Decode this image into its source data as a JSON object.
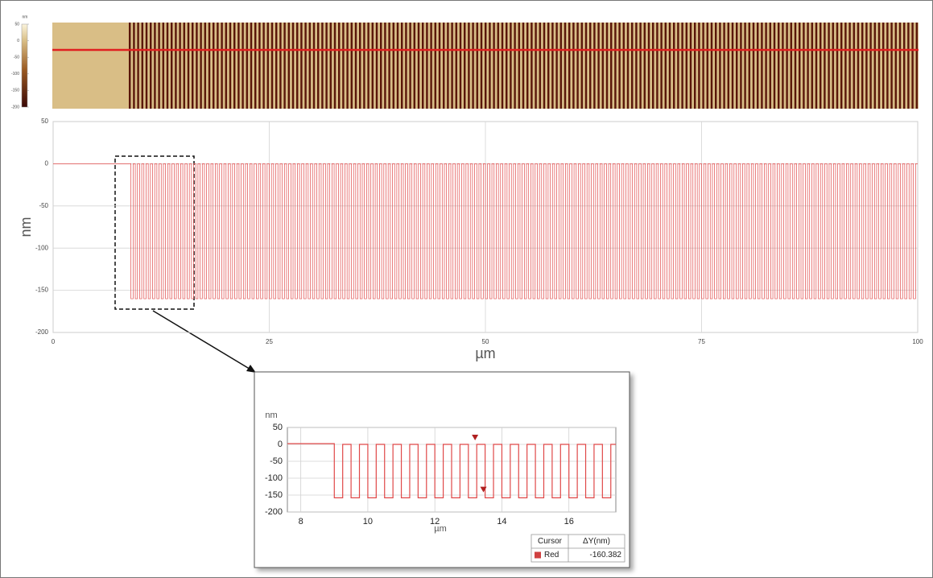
{
  "colorbar": {
    "label": "nm",
    "lim": [
      -200,
      50
    ],
    "ticks": [
      50,
      0,
      -50,
      -100,
      -150,
      -200
    ]
  },
  "chart_data": [
    {
      "type": "line",
      "xlabel": "µm",
      "ylabel": "nm",
      "xlim": [
        0,
        100
      ],
      "ylim": [
        -200,
        50
      ],
      "xticks": [
        0,
        25,
        50,
        75,
        100
      ],
      "yticks": [
        50,
        0,
        -50,
        -100,
        -150,
        -200
      ],
      "grid": true,
      "step": true,
      "series": [
        {
          "color": "#e04848",
          "x": [
            0,
            9,
            9.25,
            9.5,
            9.75,
            10,
            10.25,
            10.5,
            10.75,
            11,
            11.25,
            11.5,
            11.75,
            12,
            12.25,
            12.5,
            12.75,
            13,
            13.25,
            13.5,
            13.75,
            14,
            14.25,
            14.5,
            14.75,
            15,
            15.25,
            15.5,
            15.75,
            16,
            16.25,
            16.5,
            16.75,
            17,
            17.25,
            17.5,
            17.75,
            18,
            18.25,
            18.5,
            18.75,
            19,
            19.25,
            19.5,
            19.75,
            20,
            20.25,
            20.5,
            20.75,
            21,
            21.25,
            21.5,
            21.75,
            22,
            22.25,
            22.5,
            22.75,
            23,
            23.25,
            23.5,
            23.75,
            24,
            24.25,
            24.5,
            24.75,
            25,
            25.25,
            25.5,
            25.75,
            26,
            26.25,
            26.5,
            26.75,
            27,
            27.25,
            27.5,
            27.75,
            28,
            28.25,
            28.5,
            28.75,
            29,
            29.25,
            29.5,
            29.75,
            30,
            30.25,
            30.5,
            30.75,
            31,
            31.25,
            31.5,
            31.75,
            32,
            32.25,
            32.5,
            32.75,
            33,
            33.25,
            33.5,
            33.75,
            34,
            34.25,
            34.5,
            34.75,
            35,
            35.25,
            35.5,
            35.75,
            36,
            36.25,
            36.5,
            36.75,
            37,
            37.25,
            37.5,
            37.75,
            38,
            38.25,
            38.5,
            38.75,
            39,
            39.25,
            39.5,
            39.75,
            40,
            40.25,
            40.5,
            40.75,
            41,
            41.25,
            41.5,
            41.75,
            42,
            42.25,
            42.5,
            42.75,
            43,
            43.25,
            43.5,
            43.75,
            44,
            44.25,
            44.5,
            44.75,
            45,
            45.25,
            45.5,
            45.75,
            46,
            46.25,
            46.5,
            46.75,
            47,
            47.25,
            47.5,
            47.75,
            48,
            48.25,
            48.5,
            48.75,
            49,
            49.25,
            49.5,
            49.75,
            50,
            50.25,
            50.5,
            50.75,
            51,
            51.25,
            51.5,
            51.75,
            52,
            52.25,
            52.5,
            52.75,
            53,
            53.25,
            53.5,
            53.75,
            54,
            54.25,
            54.5,
            54.75,
            55,
            55.25,
            55.5,
            55.75,
            56,
            56.25,
            56.5,
            56.75,
            57,
            57.25,
            57.5,
            57.75,
            58,
            58.25,
            58.5,
            58.75,
            59,
            59.25,
            59.5,
            59.75,
            60,
            60.25,
            60.5,
            60.75,
            61,
            61.25,
            61.5,
            61.75,
            62,
            62.25,
            62.5,
            62.75,
            63,
            63.25,
            63.5,
            63.75,
            64,
            64.25,
            64.5,
            64.75,
            65,
            65.25,
            65.5,
            65.75,
            66,
            66.25,
            66.5,
            66.75,
            67,
            67.25,
            67.5,
            67.75,
            68,
            68.25,
            68.5,
            68.75,
            69,
            69.25,
            69.5,
            69.75,
            70,
            70.25,
            70.5,
            70.75,
            71,
            71.25,
            71.5,
            71.75,
            72,
            72.25,
            72.5,
            72.75,
            73,
            73.25,
            73.5,
            73.75,
            74,
            74.25,
            74.5,
            74.75,
            75,
            75.25,
            75.5,
            75.75,
            76,
            76.25,
            76.5,
            76.75,
            77,
            77.25,
            77.5,
            77.75,
            78,
            78.25,
            78.5,
            78.75,
            79,
            79.25,
            79.5,
            79.75,
            80,
            80.25,
            80.5,
            80.75,
            81,
            81.25,
            81.5,
            81.75,
            82,
            82.25,
            82.5,
            82.75,
            83,
            83.25,
            83.5,
            83.75,
            84,
            84.25,
            84.5,
            84.75,
            85,
            85.25,
            85.5,
            85.75,
            86,
            86.25,
            86.5,
            86.75,
            87,
            87.25,
            87.5,
            87.75,
            88,
            88.25,
            88.5,
            88.75,
            89,
            89.25,
            89.5,
            89.75,
            90,
            90.25,
            90.5,
            90.75,
            91,
            91.25,
            91.5,
            91.75,
            92,
            92.25,
            92.5,
            92.75,
            93,
            93.25,
            93.5,
            93.75,
            94,
            94.25,
            94.5,
            94.75,
            95,
            95.25,
            95.5,
            95.75,
            96,
            96.25,
            96.5,
            96.75,
            97,
            97.25,
            97.5,
            97.75,
            98,
            98.25,
            98.5,
            98.75,
            99,
            99.25,
            99.5,
            99.75
          ],
          "values": [
            0,
            -160,
            0,
            -160,
            0,
            -160,
            0,
            -160,
            0,
            -160,
            0,
            -160,
            0,
            -160,
            0,
            -160,
            0,
            -160,
            0,
            -160,
            0,
            -160,
            0,
            -160,
            0,
            -160,
            0,
            -160,
            0,
            -160,
            0,
            -160,
            0,
            -160,
            0,
            -160,
            0,
            -160,
            0,
            -160,
            0,
            -160,
            0,
            -160,
            0,
            -160,
            0,
            -160,
            0,
            -160,
            0,
            -160,
            0,
            -160,
            0,
            -160,
            0,
            -160,
            0,
            -160,
            0,
            -160,
            0,
            -160,
            0,
            -160,
            0,
            -160,
            0,
            -160,
            0,
            -160,
            0,
            -160,
            0,
            -160,
            0,
            -160,
            0,
            -160,
            0,
            -160,
            0,
            -160,
            0,
            -160,
            0,
            -160,
            0,
            -160,
            0,
            -160,
            0,
            -160,
            0,
            -160,
            0,
            -160,
            0,
            -160,
            0,
            -160,
            0,
            -160,
            0,
            -160,
            0,
            -160,
            0,
            -160,
            0,
            -160,
            0,
            -160,
            0,
            -160,
            0,
            -160,
            0,
            -160,
            0,
            -160,
            0,
            -160,
            0,
            -160,
            0,
            -160,
            0,
            -160,
            0,
            -160,
            0,
            -160,
            0,
            -160,
            0,
            -160,
            0,
            -160,
            0,
            -160,
            0,
            -160,
            0,
            -160,
            0,
            -160,
            0,
            -160,
            0,
            -160,
            0,
            -160,
            0,
            -160,
            0,
            -160,
            0,
            -160,
            0,
            -160,
            0,
            -160,
            0,
            -160,
            0,
            -160,
            0,
            -160,
            0,
            -160,
            0,
            -160,
            0,
            -160,
            0,
            -160,
            0,
            -160,
            0,
            -160,
            0,
            -160,
            0,
            -160,
            0,
            -160,
            0,
            -160,
            0,
            -160,
            0,
            -160,
            0,
            -160,
            0,
            -160,
            0,
            -160,
            0,
            -160,
            0,
            -160,
            0,
            -160,
            0,
            -160,
            0,
            -160,
            0,
            -160,
            0,
            -160,
            0,
            -160,
            0,
            -160,
            0,
            -160,
            0,
            -160,
            0,
            -160,
            0,
            -160,
            0,
            -160,
            0,
            -160,
            0,
            -160,
            0,
            -160,
            0,
            -160,
            0,
            -160,
            0,
            -160,
            0,
            -160,
            0,
            -160,
            0,
            -160,
            0,
            -160,
            0,
            -160,
            0,
            -160,
            0,
            -160,
            0,
            -160,
            0,
            -160,
            0,
            -160,
            0,
            -160,
            0,
            -160,
            0,
            -160,
            0,
            -160,
            0,
            -160,
            0,
            -160,
            0,
            -160,
            0,
            -160,
            0,
            -160,
            0,
            -160,
            0,
            -160,
            0,
            -160,
            0,
            -160,
            0,
            -160,
            0,
            -160,
            0,
            -160,
            0,
            -160,
            0,
            -160,
            0,
            -160,
            0,
            -160,
            0,
            -160,
            0,
            -160,
            0,
            -160,
            0,
            -160,
            0,
            -160,
            0,
            -160,
            0,
            -160,
            0,
            -160,
            0,
            -160,
            0,
            -160,
            0,
            -160,
            0,
            -160,
            0,
            -160,
            0,
            -160,
            0,
            -160,
            0,
            -160,
            0,
            -160,
            0,
            -160,
            0,
            -160,
            0,
            -160,
            0,
            -160,
            0,
            -160,
            0,
            -160,
            0,
            -160,
            0,
            -160,
            0,
            -160,
            0,
            -160,
            0,
            -160,
            0,
            -160,
            0,
            -160,
            0,
            -160,
            0,
            -160,
            0
          ]
        }
      ]
    },
    {
      "type": "line",
      "xlabel": "µm",
      "ylabel": "nm",
      "xlim": [
        7.6,
        17.4
      ],
      "ylim": [
        -200,
        50
      ],
      "xticks": [
        8,
        10,
        12,
        14,
        16
      ],
      "yticks": [
        50,
        0,
        -50,
        -100,
        -150,
        -200
      ],
      "grid": true,
      "step": true,
      "series": [
        {
          "color": "#e04848",
          "x": [
            7.6,
            9,
            9.25,
            9.5,
            9.75,
            10,
            10.25,
            10.5,
            10.75,
            11,
            11.25,
            11.5,
            11.75,
            12,
            12.25,
            12.5,
            12.75,
            13,
            13.25,
            13.5,
            13.75,
            14,
            14.25,
            14.5,
            14.75,
            15,
            15.25,
            15.5,
            15.75,
            16,
            16.25,
            16.5,
            16.75,
            17,
            17.25
          ],
          "values": [
            2,
            -158,
            0,
            -158,
            0,
            -158,
            0,
            -158,
            0,
            -158,
            0,
            -158,
            0,
            -158,
            0,
            -158,
            0,
            -158,
            0,
            -158,
            0,
            -158,
            0,
            -158,
            0,
            -158,
            0,
            -158,
            0,
            -158,
            0,
            -158,
            0,
            -158,
            0
          ]
        }
      ],
      "cursors": [
        {
          "x": 13.2,
          "y": 12,
          "color": "#b02020"
        },
        {
          "x": 13.45,
          "y": -142,
          "color": "#b02020"
        }
      ]
    }
  ],
  "cursor_table": {
    "header": [
      "Cursor",
      "ΔY(nm)"
    ],
    "rows": [
      [
        "Red",
        "-160.382"
      ]
    ],
    "swatch": "#d04040"
  }
}
